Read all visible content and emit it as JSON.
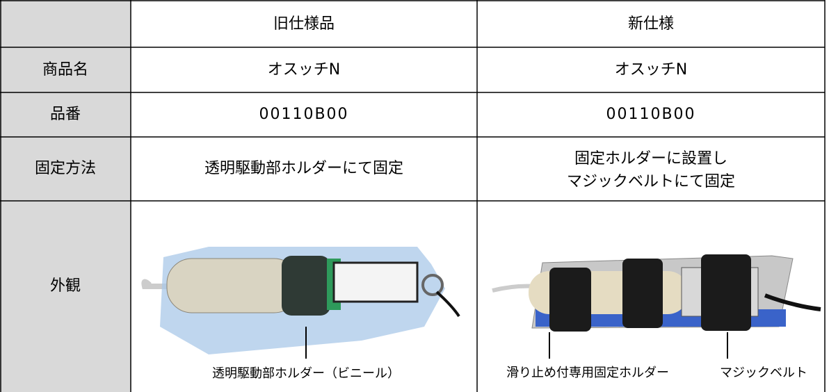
{
  "table": {
    "columns": [
      "旧仕様品",
      "新仕様"
    ],
    "rows": [
      {
        "label": "商品名",
        "old": "オスッチN",
        "new": "オスッチN"
      },
      {
        "label": "品番",
        "old": "00110B00",
        "new": "00110B00"
      },
      {
        "label": "固定方法",
        "old": [
          "透明駆動部ホルダーにて固定"
        ],
        "new": [
          "固定ホルダーに設置し",
          "マジックベルトにて固定"
        ]
      },
      {
        "label": "外観",
        "old": [
          "透明駆動部ホルダー（ビニール）"
        ],
        "new": [
          "滑り止め付専用固定ホルダー",
          "マジックベルト"
        ]
      }
    ]
  }
}
